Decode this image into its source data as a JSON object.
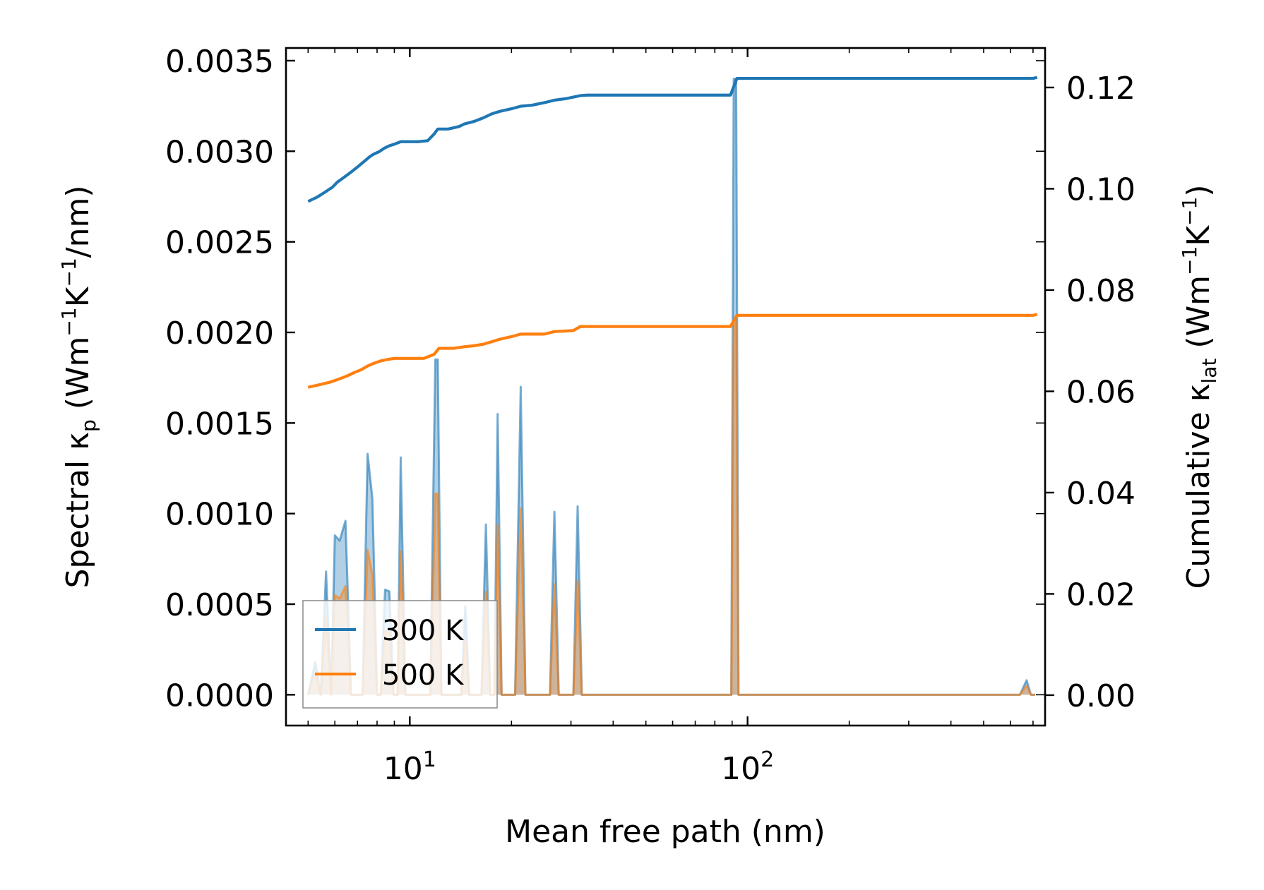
{
  "chart_data": {
    "type": "line",
    "xlabel": "Mean free path (nm)",
    "xscale": "log",
    "xlim": [
      4.3,
      760
    ],
    "x_ticks": [
      {
        "value": 10,
        "base": "10",
        "exp": "1"
      },
      {
        "value": 100,
        "base": "10",
        "exp": "2"
      }
    ],
    "y_left": {
      "label_prefix": "Spectral κ",
      "label_sub": "p",
      "label_unit_parts": [
        " (Wm",
        "−1",
        "K",
        "−1",
        "/nm)"
      ],
      "lim": [
        -0.00017,
        0.00357
      ],
      "ticks": [
        0.0,
        0.0005,
        0.001,
        0.0015,
        0.002,
        0.0025,
        0.003,
        0.0035
      ],
      "tick_labels": [
        "0.0000",
        "0.0005",
        "0.0010",
        "0.0015",
        "0.0020",
        "0.0025",
        "0.0030",
        "0.0035"
      ]
    },
    "y_right": {
      "label_prefix": "Cumulative κ",
      "label_sub": "lat",
      "label_unit_parts": [
        " (Wm",
        "−1",
        "K",
        "−1",
        ")"
      ],
      "lim": [
        -0.006,
        0.1278
      ],
      "ticks": [
        0.0,
        0.02,
        0.04,
        0.06,
        0.08,
        0.1,
        0.12
      ],
      "tick_labels": [
        "0.00",
        "0.02",
        "0.04",
        "0.06",
        "0.08",
        "0.10",
        "0.12"
      ]
    },
    "legend": {
      "placement": "lower-left",
      "entries": [
        {
          "label": "300 K",
          "color": "#1f77b4"
        },
        {
          "label": "500 K",
          "color": "#ff7f0e"
        }
      ]
    },
    "series": [
      {
        "name": "300 K",
        "color": "#1f77b4",
        "spectral_axis": "left",
        "spectral_x": [
          5.0,
          5.25,
          5.45,
          5.65,
          5.85,
          6.0,
          6.2,
          6.45,
          6.7,
          6.95,
          7.25,
          7.5,
          7.75,
          8.0,
          8.2,
          8.45,
          8.7,
          8.95,
          9.2,
          9.4,
          9.7,
          10.0,
          10.5,
          11.0,
          11.5,
          11.9,
          12.1,
          12.4,
          12.9,
          13.5,
          14.2,
          14.6,
          15.0,
          15.7,
          16.3,
          16.8,
          17.3,
          17.8,
          18.2,
          18.7,
          19.5,
          20.5,
          21.3,
          22.0,
          23.0,
          25.0,
          26.0,
          26.8,
          27.6,
          29.0,
          30.5,
          31.4,
          32.3,
          33.5,
          40.0,
          60.0,
          88.0,
          89.5,
          91.0,
          92.5,
          94.0,
          96.0,
          100.0,
          200.0,
          400.0,
          640.0,
          670.0,
          690.0,
          710.0
        ],
        "spectral_y": [
          0.0,
          0.00018,
          0.0,
          0.00068,
          0.0,
          0.00088,
          0.00085,
          0.00096,
          0.0,
          0.0,
          0.0,
          0.00133,
          0.00108,
          0.0,
          0.0,
          0.00058,
          0.00057,
          0.0,
          0.0,
          0.00131,
          0.0,
          0.0,
          0.0,
          0.0,
          0.0,
          0.00185,
          0.00185,
          0.0,
          0.0,
          0.0,
          0.0,
          0.00049,
          0.0,
          0.0,
          0.0,
          0.00094,
          0.0,
          0.0,
          0.00155,
          0.0,
          0.0,
          0.0,
          0.0017,
          0.0,
          0.0,
          0.0,
          0.0,
          0.00101,
          0.0,
          0.0,
          0.0,
          0.00104,
          0.0,
          0.0,
          0.0,
          0.0,
          0.0,
          0.0,
          0.0034,
          0.0034,
          0.0,
          0.0,
          0.0,
          0.0,
          0.0,
          0.0,
          8e-05,
          0.0,
          0.0
        ],
        "cumulative_axis": "right",
        "cumulative_x": [
          5.0,
          5.3,
          5.6,
          5.9,
          6.1,
          6.4,
          6.7,
          7.0,
          7.3,
          7.6,
          7.8,
          8.1,
          8.4,
          8.7,
          9.0,
          9.4,
          10.0,
          10.6,
          11.3,
          11.8,
          12.1,
          13.0,
          14.0,
          14.5,
          15.5,
          16.5,
          17.5,
          18.5,
          20.0,
          21.3,
          23.0,
          25.0,
          26.8,
          29.0,
          30.5,
          32.0,
          33.5,
          50.0,
          89.0,
          93.0,
          100.0,
          300.0,
          700.0,
          720.0
        ],
        "cumulative_y": [
          0.0975,
          0.0983,
          0.0993,
          0.1003,
          0.1013,
          0.1023,
          0.1033,
          0.1043,
          0.1053,
          0.1063,
          0.1068,
          0.1073,
          0.108,
          0.1085,
          0.1088,
          0.1093,
          0.1093,
          0.1093,
          0.1095,
          0.1108,
          0.1118,
          0.1118,
          0.1123,
          0.1128,
          0.1133,
          0.114,
          0.1148,
          0.1153,
          0.1158,
          0.1163,
          0.1165,
          0.117,
          0.1175,
          0.1178,
          0.1181,
          0.1184,
          0.1185,
          0.1185,
          0.1185,
          0.1218,
          0.1218,
          0.1218,
          0.1218,
          0.122
        ]
      },
      {
        "name": "500 K",
        "color": "#ff7f0e",
        "spectral_axis": "left",
        "spectral_x": [
          5.0,
          5.25,
          5.45,
          5.65,
          5.85,
          6.0,
          6.2,
          6.45,
          6.7,
          6.95,
          7.25,
          7.5,
          7.75,
          8.0,
          8.2,
          8.45,
          8.7,
          8.95,
          9.2,
          9.4,
          9.7,
          10.0,
          10.5,
          11.0,
          11.5,
          11.9,
          12.1,
          12.4,
          12.9,
          13.5,
          14.2,
          14.6,
          15.0,
          15.7,
          16.3,
          16.8,
          17.3,
          17.8,
          18.2,
          18.7,
          19.5,
          20.5,
          21.3,
          22.0,
          23.0,
          25.0,
          26.0,
          26.8,
          27.6,
          29.0,
          30.5,
          31.4,
          32.3,
          33.5,
          40.0,
          60.0,
          88.0,
          89.5,
          91.0,
          92.5,
          94.0,
          96.0,
          100.0,
          200.0,
          400.0,
          640.0,
          670.0,
          690.0,
          710.0
        ],
        "spectral_y": [
          0.0,
          0.00012,
          0.0,
          0.00043,
          0.0,
          0.00055,
          0.00053,
          0.0006,
          0.0,
          0.0,
          0.0,
          0.0008,
          0.00066,
          0.0,
          0.0,
          0.00035,
          0.00034,
          0.0,
          0.0,
          0.00079,
          0.0,
          0.0,
          0.0,
          0.0,
          0.0,
          0.00111,
          0.00111,
          0.0,
          0.0,
          0.0,
          0.0,
          0.0003,
          0.0,
          0.0,
          0.0,
          0.00057,
          0.0,
          0.0,
          0.00094,
          0.0,
          0.0,
          0.0,
          0.00103,
          0.0,
          0.0,
          0.0,
          0.0,
          0.00061,
          0.0,
          0.0,
          0.0,
          0.00063,
          0.0,
          0.0,
          0.0,
          0.0,
          0.0,
          0.0,
          0.00206,
          0.00206,
          0.0,
          0.0,
          0.0,
          0.0,
          0.0,
          0.0,
          5e-05,
          0.0,
          0.0
        ],
        "cumulative_axis": "right",
        "cumulative_x": [
          5.0,
          5.4,
          5.8,
          6.1,
          6.5,
          6.9,
          7.2,
          7.5,
          7.8,
          8.2,
          8.6,
          9.0,
          9.5,
          10.0,
          11.0,
          11.8,
          12.2,
          13.5,
          14.5,
          15.5,
          16.5,
          17.5,
          18.5,
          20.0,
          21.3,
          25.0,
          26.8,
          30.5,
          32.0,
          50.0,
          89.0,
          93.0,
          200.0,
          700.0,
          720.0
        ],
        "cumulative_y": [
          0.0608,
          0.0613,
          0.0618,
          0.0623,
          0.063,
          0.0638,
          0.0643,
          0.065,
          0.0655,
          0.066,
          0.0663,
          0.0665,
          0.0665,
          0.0665,
          0.0665,
          0.0673,
          0.0685,
          0.0685,
          0.0688,
          0.069,
          0.0693,
          0.0698,
          0.0703,
          0.0708,
          0.0713,
          0.0713,
          0.0718,
          0.072,
          0.0728,
          0.0728,
          0.0728,
          0.075,
          0.075,
          0.075,
          0.0752
        ]
      }
    ]
  }
}
